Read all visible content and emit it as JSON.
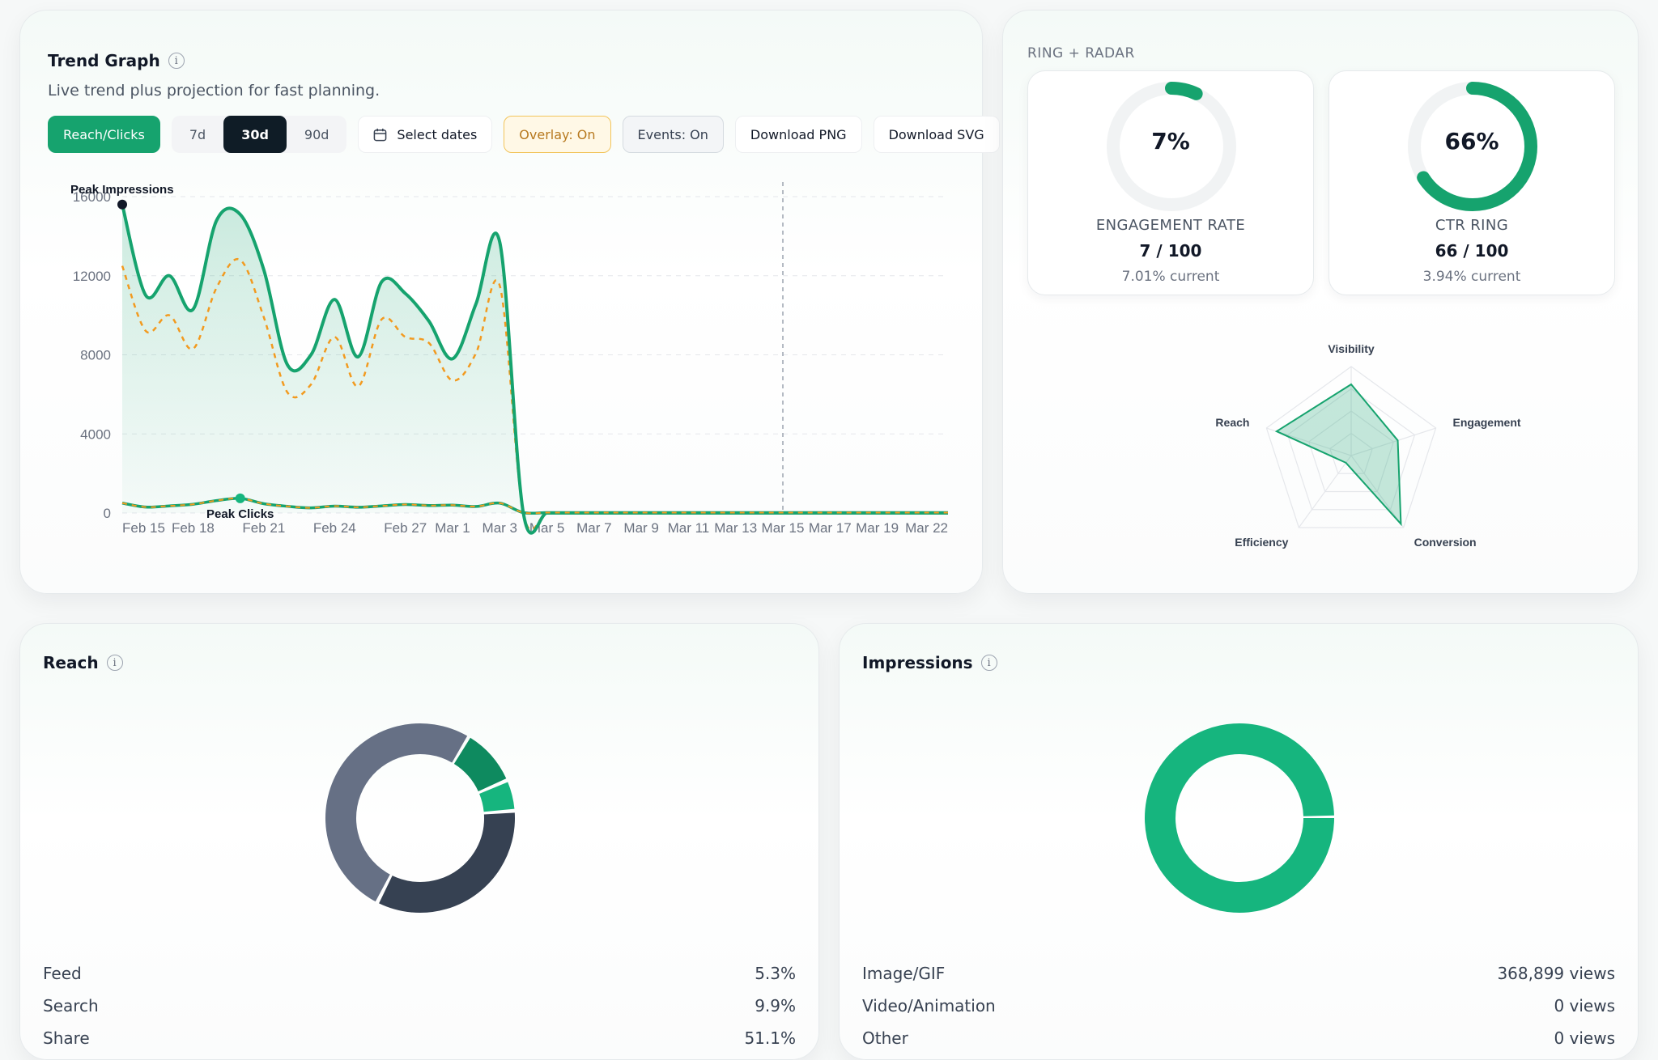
{
  "trend": {
    "title": "Trend Graph",
    "info": "i",
    "subtitle": "Live trend plus projection for fast planning.",
    "buttons": {
      "metric": "Reach/Clicks",
      "range_7d": "7d",
      "range_30d": "30d",
      "range_90d": "90d",
      "select_dates": "Select dates",
      "overlay": "Overlay: On",
      "events": "Events: On",
      "download_png": "Download PNG",
      "download_svg": "Download SVG"
    },
    "peak_impressions_label": "Peak Impressions",
    "peak_clicks_label": "Peak Clicks"
  },
  "chart_data": {
    "type": "line",
    "y_ticks": [
      "16000",
      "12000",
      "8000",
      "4000",
      "0"
    ],
    "ylim": [
      0,
      16000
    ],
    "x_tick_labels": [
      "Feb 15",
      "Feb 18",
      "Feb 21",
      "Feb 24",
      "Feb 27",
      "Mar 1",
      "Mar 3",
      "Mar 5",
      "Mar 7",
      "Mar 9",
      "Mar 11",
      "Mar 13",
      "Mar 15",
      "Mar 17",
      "Mar 19",
      "Mar 22"
    ],
    "x": [
      "Feb 15",
      "Feb 16",
      "Feb 17",
      "Feb 18",
      "Feb 19",
      "Feb 20",
      "Feb 21",
      "Feb 22",
      "Feb 23",
      "Feb 24",
      "Feb 25",
      "Feb 26",
      "Feb 27",
      "Feb 28",
      "Mar 1",
      "Mar 2",
      "Mar 3",
      "Mar 4",
      "Mar 5",
      "Mar 6",
      "Mar 7",
      "Mar 8",
      "Mar 9",
      "Mar 10",
      "Mar 11",
      "Mar 12",
      "Mar 13",
      "Mar 14",
      "Mar 15",
      "Mar 16",
      "Mar 17",
      "Mar 18",
      "Mar 19",
      "Mar 20",
      "Mar 21",
      "Mar 22"
    ],
    "series": [
      {
        "color": "#16a36e",
        "style": "solid-area",
        "values": [
          15600,
          11000,
          12000,
          10300,
          14800,
          15100,
          12300,
          7500,
          8000,
          10800,
          7900,
          11700,
          11100,
          9700,
          7800,
          10600,
          13700,
          0,
          0,
          0,
          0,
          0,
          0,
          0,
          0,
          0,
          0,
          0,
          0,
          0,
          0,
          0,
          0,
          0,
          0,
          0
        ]
      },
      {
        "color": "#f29a1f",
        "style": "dashed",
        "values": [
          12500,
          9200,
          10000,
          8300,
          11400,
          12800,
          9900,
          6100,
          6500,
          8900,
          6400,
          9800,
          8900,
          8600,
          6700,
          8100,
          11500,
          0,
          0,
          0,
          0,
          0,
          0,
          0,
          0,
          0,
          0,
          0,
          0,
          0,
          0,
          0,
          0,
          0,
          0,
          0
        ]
      },
      {
        "color": "#16a36e",
        "style": "clicks",
        "values": [
          500,
          300,
          360,
          440,
          630,
          740,
          470,
          340,
          260,
          350,
          290,
          360,
          430,
          380,
          400,
          330,
          500,
          20,
          20,
          20,
          20,
          20,
          20,
          20,
          20,
          20,
          20,
          20,
          20,
          20,
          20,
          20,
          20,
          20,
          20,
          20
        ]
      }
    ],
    "projection_from": "Mar 15",
    "legend": false,
    "grid": true
  },
  "rings": {
    "section_label": "RING + RADAR",
    "engagement": {
      "value_text": "7%",
      "percent": 7,
      "label": "ENGAGEMENT RATE",
      "score": "7 / 100",
      "current": "7.01% current"
    },
    "ctr": {
      "value_text": "66%",
      "percent": 66,
      "label": "CTR RING",
      "score": "66 / 100",
      "current": "3.94% current"
    }
  },
  "radar": {
    "axes": [
      "Visibility",
      "Engagement",
      "Conversion",
      "Efficiency",
      "Reach"
    ],
    "values": [
      0.8,
      0.55,
      0.95,
      0.1,
      0.88
    ]
  },
  "reach": {
    "title": "Reach",
    "info": "i",
    "segments": [
      {
        "label": "Feed",
        "value_text": "5.3%",
        "percent": 5.3,
        "color": "#475467"
      },
      {
        "label": "Search",
        "value_text": "9.9%",
        "percent": 9.9,
        "color": "#0e8a5f"
      },
      {
        "label": "Share",
        "value_text": "51.1%",
        "percent": 51.1,
        "color": "#16b57e"
      }
    ],
    "donut_slices": [
      {
        "percent": 9.9,
        "color": "#0e8a5f"
      },
      {
        "percent": 5.3,
        "color": "#16b57e"
      },
      {
        "percent": 33.7,
        "color": "#364152"
      },
      {
        "percent": 51.1,
        "color": "#667085"
      }
    ]
  },
  "impressions": {
    "title": "Impressions",
    "info": "i",
    "rows": [
      {
        "label": "Image/GIF",
        "value_text": "368,899 views"
      },
      {
        "label": "Video/Animation",
        "value_text": "0 views"
      },
      {
        "label": "Other",
        "value_text": "0 views"
      }
    ],
    "donut_color": "#16b57e"
  }
}
